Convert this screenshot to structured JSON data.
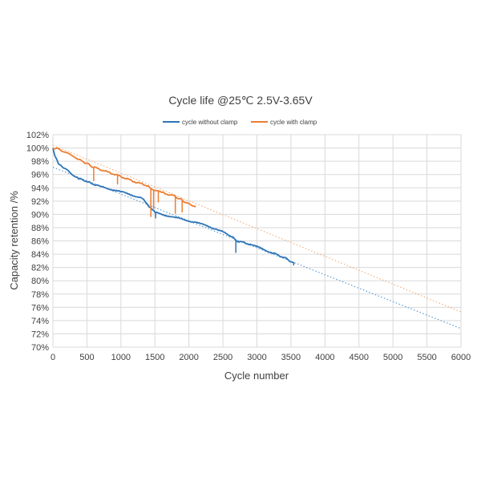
{
  "chart_data": {
    "type": "line",
    "title": "Cycle life @25℃  2.5V-3.65V",
    "xlabel": "Cycle number",
    "ylabel": "Capacity retention /%",
    "xlim": [
      0,
      6000
    ],
    "ylim": [
      70,
      102
    ],
    "x_ticks": [
      0,
      500,
      1000,
      1500,
      2000,
      2500,
      3000,
      3500,
      4000,
      4500,
      5000,
      5500,
      6000
    ],
    "y_ticks": [
      70,
      72,
      74,
      76,
      78,
      80,
      82,
      84,
      86,
      88,
      90,
      92,
      94,
      96,
      98,
      100,
      102
    ],
    "y_tick_suffix": "%",
    "grid": true,
    "legend_position": "top-center",
    "series": [
      {
        "name": "cycle without clamp",
        "color": "#2e75b6",
        "x": [
          0,
          30,
          80,
          150,
          250,
          350,
          500,
          700,
          1000,
          1300,
          1500,
          1800,
          2100,
          2400,
          2650,
          2700,
          2900,
          3200,
          3400,
          3550
        ],
        "y": [
          100,
          98.8,
          97.6,
          97,
          96.3,
          95.6,
          94.9,
          94.2,
          93.4,
          92.5,
          90.3,
          89.5,
          88.8,
          87.8,
          86.6,
          86,
          85.5,
          84.3,
          83.5,
          82.6
        ],
        "dips": [
          [
            1510,
            89.4
          ],
          [
            2690,
            84.2
          ],
          [
            3540,
            82.3
          ],
          [
            380,
            95.2
          ]
        ]
      },
      {
        "name": "cycle with clamp",
        "color": "#ed7d31",
        "x": [
          0,
          20,
          60,
          100,
          200,
          300,
          450,
          600,
          800,
          1000,
          1200,
          1400,
          1500,
          1600,
          1800,
          1950,
          2100
        ],
        "y": [
          100,
          99.9,
          100,
          99.8,
          99.3,
          98.7,
          97.9,
          97.1,
          96.4,
          95.7,
          94.9,
          94.3,
          93.6,
          93.3,
          92.7,
          91.8,
          91.1
        ],
        "dips": [
          [
            600,
            95
          ],
          [
            950,
            94.5
          ],
          [
            1440,
            89.6
          ],
          [
            1480,
            90.8
          ],
          [
            1550,
            91.8
          ],
          [
            1800,
            90.1
          ],
          [
            1900,
            90.3
          ]
        ]
      }
    ],
    "trendlines": [
      {
        "name": "without clamp trend",
        "color": "#5b9bd5",
        "x": [
          0,
          6000
        ],
        "y": [
          97.1,
          72.8
        ]
      },
      {
        "name": "with clamp trend",
        "color": "#f4b183",
        "x": [
          0,
          6000
        ],
        "y": [
          100.4,
          75.3
        ]
      }
    ]
  }
}
